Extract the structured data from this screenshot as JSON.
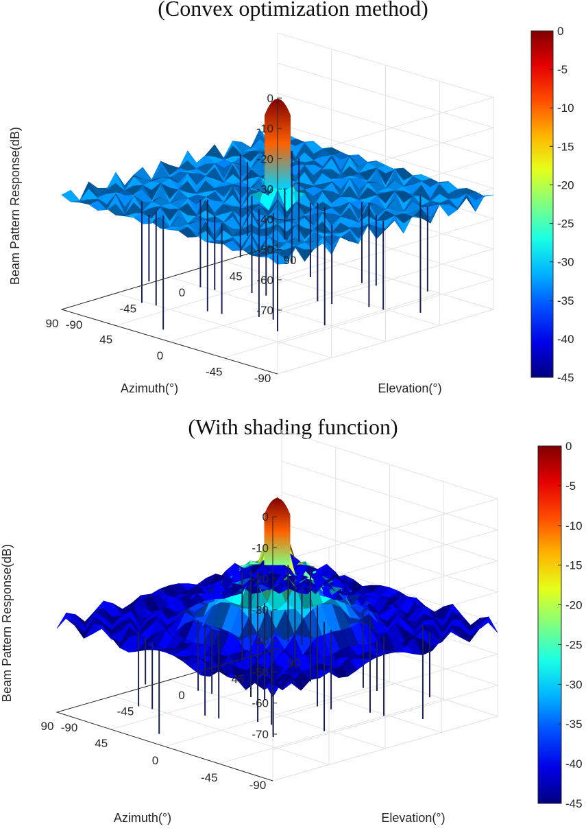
{
  "chart_data": [
    {
      "type": "surface",
      "title": "(Convex optimization method)",
      "xlabel": "Azimuth(°)",
      "ylabel": "Elevation(°)",
      "zlabel": "Beam Pattern Response(dB)",
      "x_ticks": [
        "-90",
        "-45",
        "0",
        "45",
        "90"
      ],
      "y_ticks": [
        "-90",
        "-45",
        "0",
        "45",
        "90"
      ],
      "z_ticks": [
        "0",
        "-10",
        "-20",
        "-30",
        "-40",
        "-50",
        "-60",
        "-70"
      ],
      "xlim": [
        -90,
        90
      ],
      "ylim": [
        -90,
        90
      ],
      "zlim": [
        -70,
        0
      ],
      "colorbar": {
        "ticks": [
          "0",
          "-5",
          "-10",
          "-15",
          "-20",
          "-25",
          "-30",
          "-35",
          "-40",
          "-45"
        ],
        "range": [
          -45,
          0
        ],
        "colormap": "jet"
      },
      "mainlobe": {
        "azimuth": 0,
        "elevation": 0,
        "peak_db": 0
      },
      "sidelobe_level_db": -30,
      "null_depth_db": -70
    },
    {
      "type": "surface",
      "title": "(With shading function)",
      "xlabel": "Azimuth(°)",
      "ylabel": "Elevation(°)",
      "zlabel": "Beam Pattern Response(dB)",
      "x_ticks": [
        "-90",
        "-45",
        "0",
        "45",
        "90"
      ],
      "y_ticks": [
        "-90",
        "-45",
        "0",
        "45",
        "90"
      ],
      "z_ticks": [
        "0",
        "-10",
        "-20",
        "-30",
        "-40",
        "-50",
        "-60",
        "-70"
      ],
      "xlim": [
        -90,
        90
      ],
      "ylim": [
        -90,
        90
      ],
      "zlim": [
        -70,
        0
      ],
      "colorbar": {
        "ticks": [
          "0",
          "-5",
          "-10",
          "-15",
          "-20",
          "-25",
          "-30",
          "-35",
          "-40",
          "-45"
        ],
        "range": [
          -45,
          0
        ],
        "colormap": "jet"
      },
      "mainlobe": {
        "azimuth": 0,
        "elevation": 0,
        "peak_db": 0
      },
      "sidelobe_level_db": -40,
      "null_depth_db": -70
    }
  ]
}
